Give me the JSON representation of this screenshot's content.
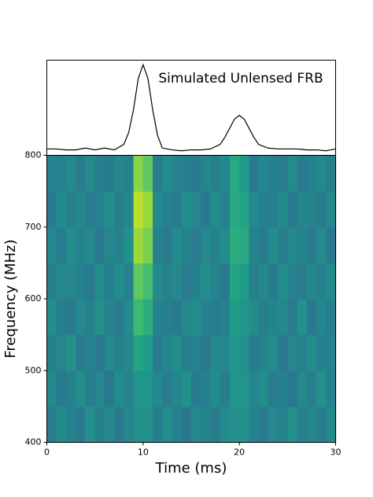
{
  "chart_data": [
    {
      "type": "line",
      "title": "Simulated Unlensed FRB",
      "color": "#000000",
      "x": [
        0,
        1,
        2,
        3,
        4,
        5,
        6,
        7,
        8,
        8.5,
        9,
        9.5,
        10,
        10.5,
        11,
        11.5,
        12,
        13,
        14,
        15,
        16,
        17,
        18,
        18.5,
        19,
        19.5,
        20,
        20.5,
        21,
        21.5,
        22,
        23,
        24,
        25,
        26,
        27,
        28,
        29,
        30
      ],
      "values": [
        0.07,
        0.07,
        0.06,
        0.06,
        0.08,
        0.06,
        0.08,
        0.06,
        0.12,
        0.25,
        0.5,
        0.85,
        1.0,
        0.85,
        0.5,
        0.22,
        0.08,
        0.06,
        0.05,
        0.06,
        0.06,
        0.07,
        0.12,
        0.2,
        0.3,
        0.4,
        0.44,
        0.4,
        0.3,
        0.2,
        0.12,
        0.08,
        0.07,
        0.07,
        0.07,
        0.06,
        0.06,
        0.05,
        0.07
      ],
      "xlim": [
        0,
        30
      ],
      "ylim": [
        0,
        1.05
      ]
    },
    {
      "type": "heatmap",
      "xlabel": "Time (ms)",
      "ylabel": "Frequency (MHz)",
      "colormap": "viridis",
      "xlim": [
        0,
        30
      ],
      "ylim": [
        400,
        800
      ],
      "xticks": [
        0,
        10,
        20,
        30
      ],
      "yticks": [
        400,
        500,
        600,
        700,
        800
      ],
      "zlim": [
        0,
        1
      ],
      "x_bins": [
        0,
        1,
        2,
        3,
        4,
        5,
        6,
        7,
        8,
        9,
        10,
        11,
        12,
        13,
        14,
        15,
        16,
        17,
        18,
        19,
        20,
        21,
        22,
        23,
        24,
        25,
        26,
        27,
        28,
        29,
        30
      ],
      "y_bins": [
        400,
        450,
        500,
        550,
        600,
        650,
        700,
        750,
        800
      ],
      "z": [
        [
          0.42,
          0.48,
          0.45,
          0.4,
          0.5,
          0.44,
          0.47,
          0.41,
          0.46,
          0.5,
          0.5,
          0.43,
          0.49,
          0.44,
          0.4,
          0.47,
          0.45,
          0.42,
          0.48,
          0.5,
          0.5,
          0.44,
          0.41,
          0.47,
          0.45,
          0.5,
          0.43,
          0.46,
          0.42,
          0.48
        ],
        [
          0.47,
          0.41,
          0.44,
          0.49,
          0.43,
          0.46,
          0.4,
          0.48,
          0.45,
          0.52,
          0.52,
          0.47,
          0.42,
          0.46,
          0.5,
          0.41,
          0.44,
          0.48,
          0.43,
          0.52,
          0.52,
          0.46,
          0.49,
          0.42,
          0.44,
          0.4,
          0.47,
          0.43,
          0.5,
          0.44
        ],
        [
          0.44,
          0.46,
          0.5,
          0.42,
          0.45,
          0.4,
          0.48,
          0.44,
          0.47,
          0.58,
          0.55,
          0.41,
          0.46,
          0.49,
          0.43,
          0.45,
          0.4,
          0.47,
          0.46,
          0.52,
          0.5,
          0.42,
          0.45,
          0.48,
          0.41,
          0.46,
          0.44,
          0.49,
          0.43,
          0.45
        ],
        [
          0.49,
          0.43,
          0.41,
          0.47,
          0.44,
          0.5,
          0.45,
          0.42,
          0.48,
          0.68,
          0.62,
          0.45,
          0.43,
          0.41,
          0.47,
          0.49,
          0.44,
          0.42,
          0.45,
          0.55,
          0.52,
          0.48,
          0.43,
          0.45,
          0.47,
          0.42,
          0.5,
          0.41,
          0.46,
          0.43
        ],
        [
          0.43,
          0.47,
          0.46,
          0.44,
          0.41,
          0.48,
          0.43,
          0.49,
          0.44,
          0.75,
          0.7,
          0.48,
          0.45,
          0.47,
          0.42,
          0.44,
          0.49,
          0.45,
          0.41,
          0.58,
          0.55,
          0.43,
          0.47,
          0.41,
          0.49,
          0.45,
          0.42,
          0.47,
          0.44,
          0.48
        ],
        [
          0.46,
          0.42,
          0.49,
          0.45,
          0.47,
          0.41,
          0.46,
          0.44,
          0.5,
          0.85,
          0.8,
          0.44,
          0.41,
          0.48,
          0.45,
          0.42,
          0.47,
          0.44,
          0.49,
          0.62,
          0.6,
          0.45,
          0.42,
          0.49,
          0.43,
          0.47,
          0.45,
          0.42,
          0.48,
          0.41
        ],
        [
          0.41,
          0.48,
          0.43,
          0.47,
          0.42,
          0.45,
          0.49,
          0.43,
          0.46,
          0.9,
          0.85,
          0.47,
          0.44,
          0.42,
          0.49,
          0.46,
          0.41,
          0.48,
          0.44,
          0.6,
          0.58,
          0.47,
          0.44,
          0.43,
          0.48,
          0.41,
          0.46,
          0.45,
          0.42,
          0.47
        ],
        [
          0.45,
          0.44,
          0.47,
          0.42,
          0.48,
          0.43,
          0.41,
          0.46,
          0.44,
          0.82,
          0.75,
          0.42,
          0.48,
          0.45,
          0.43,
          0.41,
          0.46,
          0.43,
          0.47,
          0.6,
          0.55,
          0.41,
          0.46,
          0.44,
          0.42,
          0.48,
          0.41,
          0.44,
          0.47,
          0.43
        ]
      ]
    }
  ]
}
